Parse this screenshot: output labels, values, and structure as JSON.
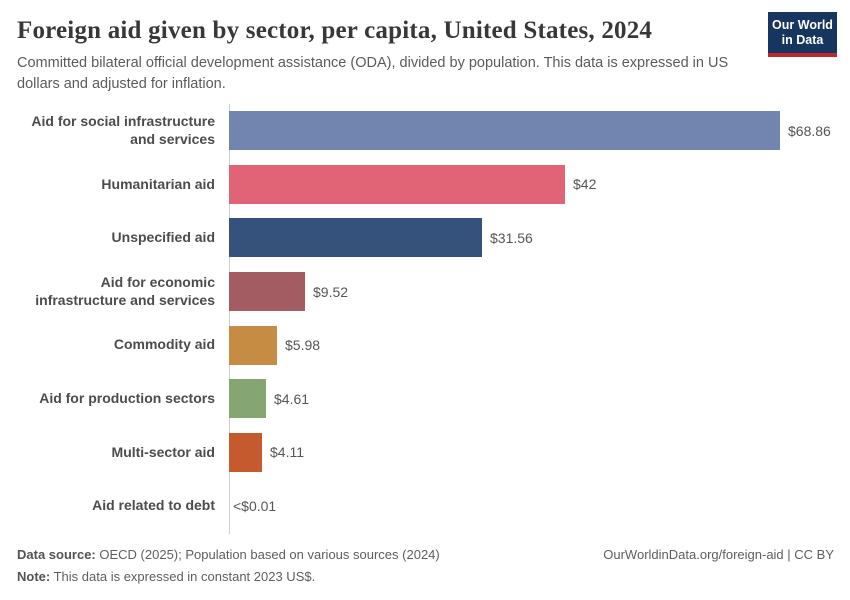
{
  "header": {
    "title": "Foreign aid given by sector, per capita, United States, 2024",
    "subtitle": "Committed bilateral official development assistance (ODA), divided by population. This data is expressed in US dollars and adjusted for inflation."
  },
  "logo": {
    "line1": "Our World",
    "line2": "in Data",
    "bg_color": "#16355f",
    "accent_color": "#c0262d"
  },
  "chart_data": {
    "type": "bar",
    "orientation": "horizontal",
    "title": "Foreign aid given by sector, per capita, United States, 2024",
    "categories": [
      "Aid for social infrastructure and services",
      "Humanitarian aid",
      "Unspecified aid",
      "Aid for economic infrastructure and services",
      "Commodity aid",
      "Aid for production sectors",
      "Multi-sector aid",
      "Aid related to debt"
    ],
    "values": [
      68.86,
      42,
      31.56,
      9.52,
      5.98,
      4.61,
      4.11,
      0.005
    ],
    "value_labels": [
      "$68.86",
      "$42",
      "$31.56",
      "$9.52",
      "$5.98",
      "$4.61",
      "$4.11",
      "<$0.01"
    ],
    "bar_colors": [
      "#7285af",
      "#e06376",
      "#34527c",
      "#a25c62",
      "#c78c44",
      "#85a672",
      "#c65a2f",
      "#999999"
    ],
    "xlim": [
      0,
      68.86
    ],
    "grid": false,
    "legend": "none"
  },
  "footer": {
    "data_source_label": "Data source:",
    "data_source_text": "OECD (2025); Population based on various sources (2024)",
    "note_label": "Note:",
    "note_text": "This data is expressed in constant 2023 US$.",
    "link_text": "OurWorldinData.org/foreign-aid | CC BY"
  }
}
